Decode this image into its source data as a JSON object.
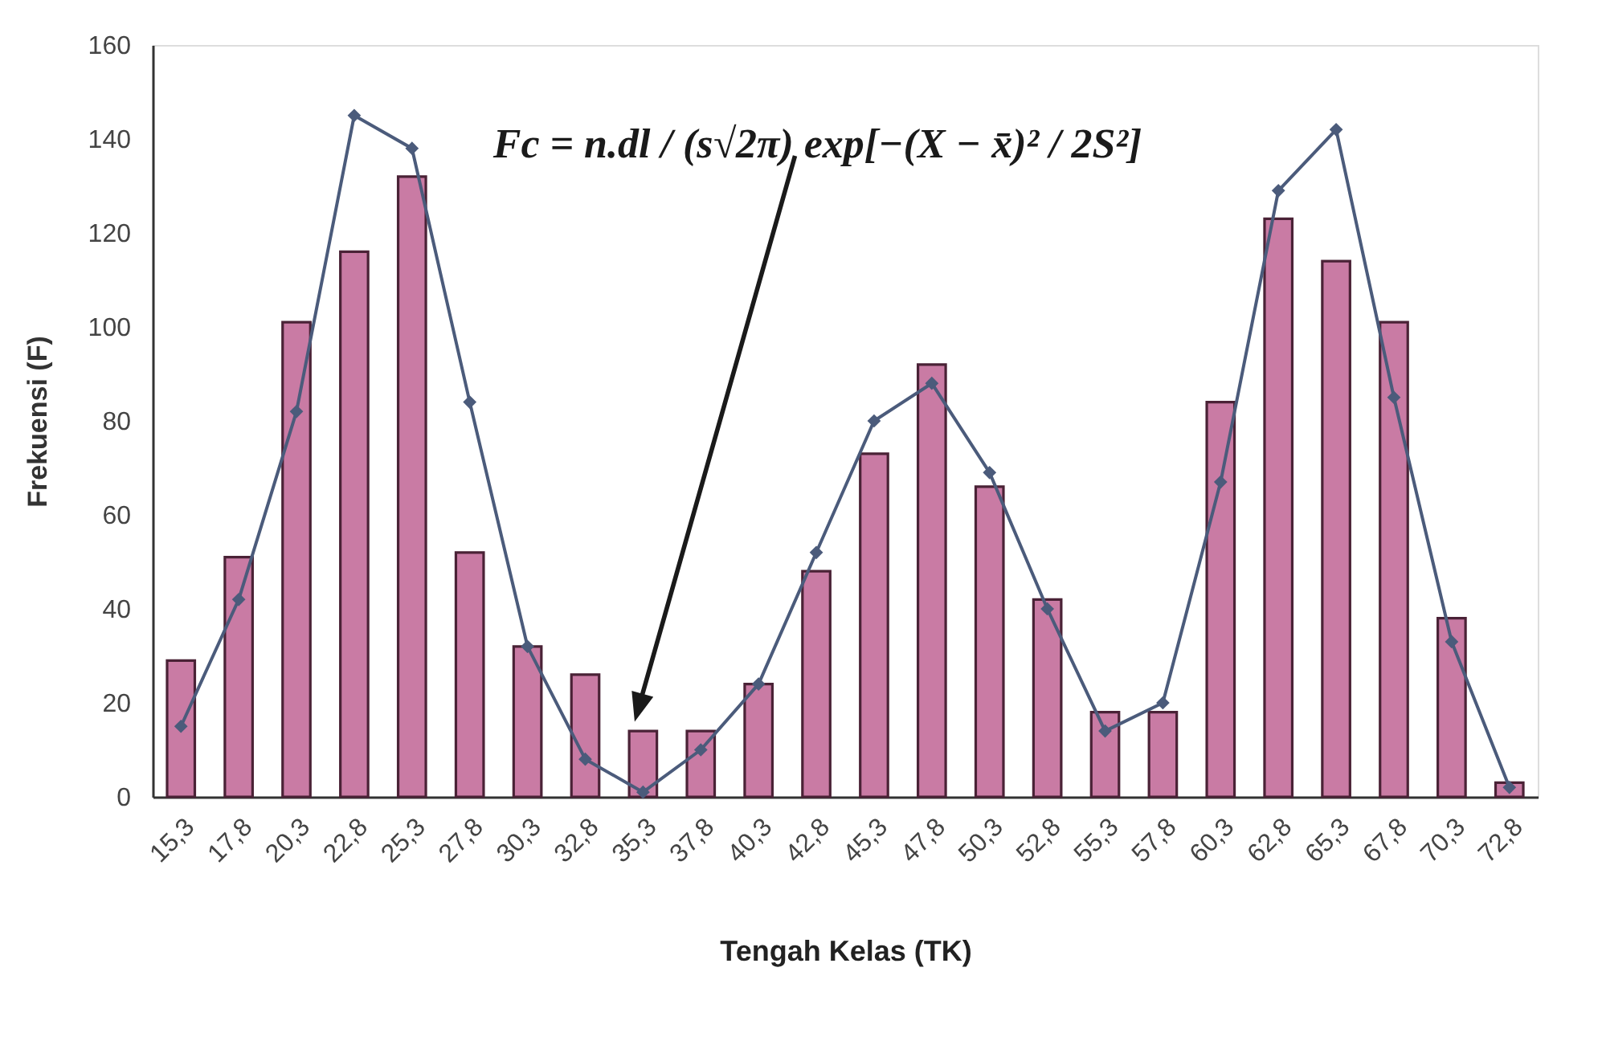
{
  "chart_data": {
    "type": "bar",
    "xlabel": "Tengah Kelas (TK)",
    "ylabel": "Frekuensi (F)",
    "categories": [
      "15,3",
      "17,8",
      "20,3",
      "22,8",
      "25,3",
      "27,8",
      "30,3",
      "32,8",
      "35,3",
      "37,8",
      "40,3",
      "42,8",
      "45,3",
      "47,8",
      "50,3",
      "52,8",
      "55,3",
      "57,8",
      "60,3",
      "62,8",
      "65,3",
      "67,8",
      "70,3",
      "72,8"
    ],
    "series": [
      {
        "color": "#c97ba4",
        "values": [
          29,
          51,
          101,
          116,
          132,
          52,
          32,
          26,
          14,
          14,
          24,
          48,
          73,
          92,
          66,
          42,
          18,
          18,
          84,
          123,
          114,
          101,
          38,
          3
        ]
      },
      {
        "type": "line",
        "color": "#4b5b7b",
        "values": [
          15,
          42,
          82,
          145,
          138,
          84,
          32,
          8,
          1,
          10,
          24,
          52,
          80,
          88,
          69,
          40,
          14,
          20,
          67,
          129,
          142,
          85,
          33,
          2
        ]
      }
    ],
    "ylim": [
      0,
      160
    ],
    "yticks": [
      0,
      20,
      40,
      60,
      80,
      100,
      120,
      140,
      160
    ],
    "grid": false,
    "marker": "diamond",
    "line_style": "solid",
    "annotations": [
      "Fc = n.dl / (s√2π) exp[−(X − x̄)² / 2S²]"
    ]
  }
}
